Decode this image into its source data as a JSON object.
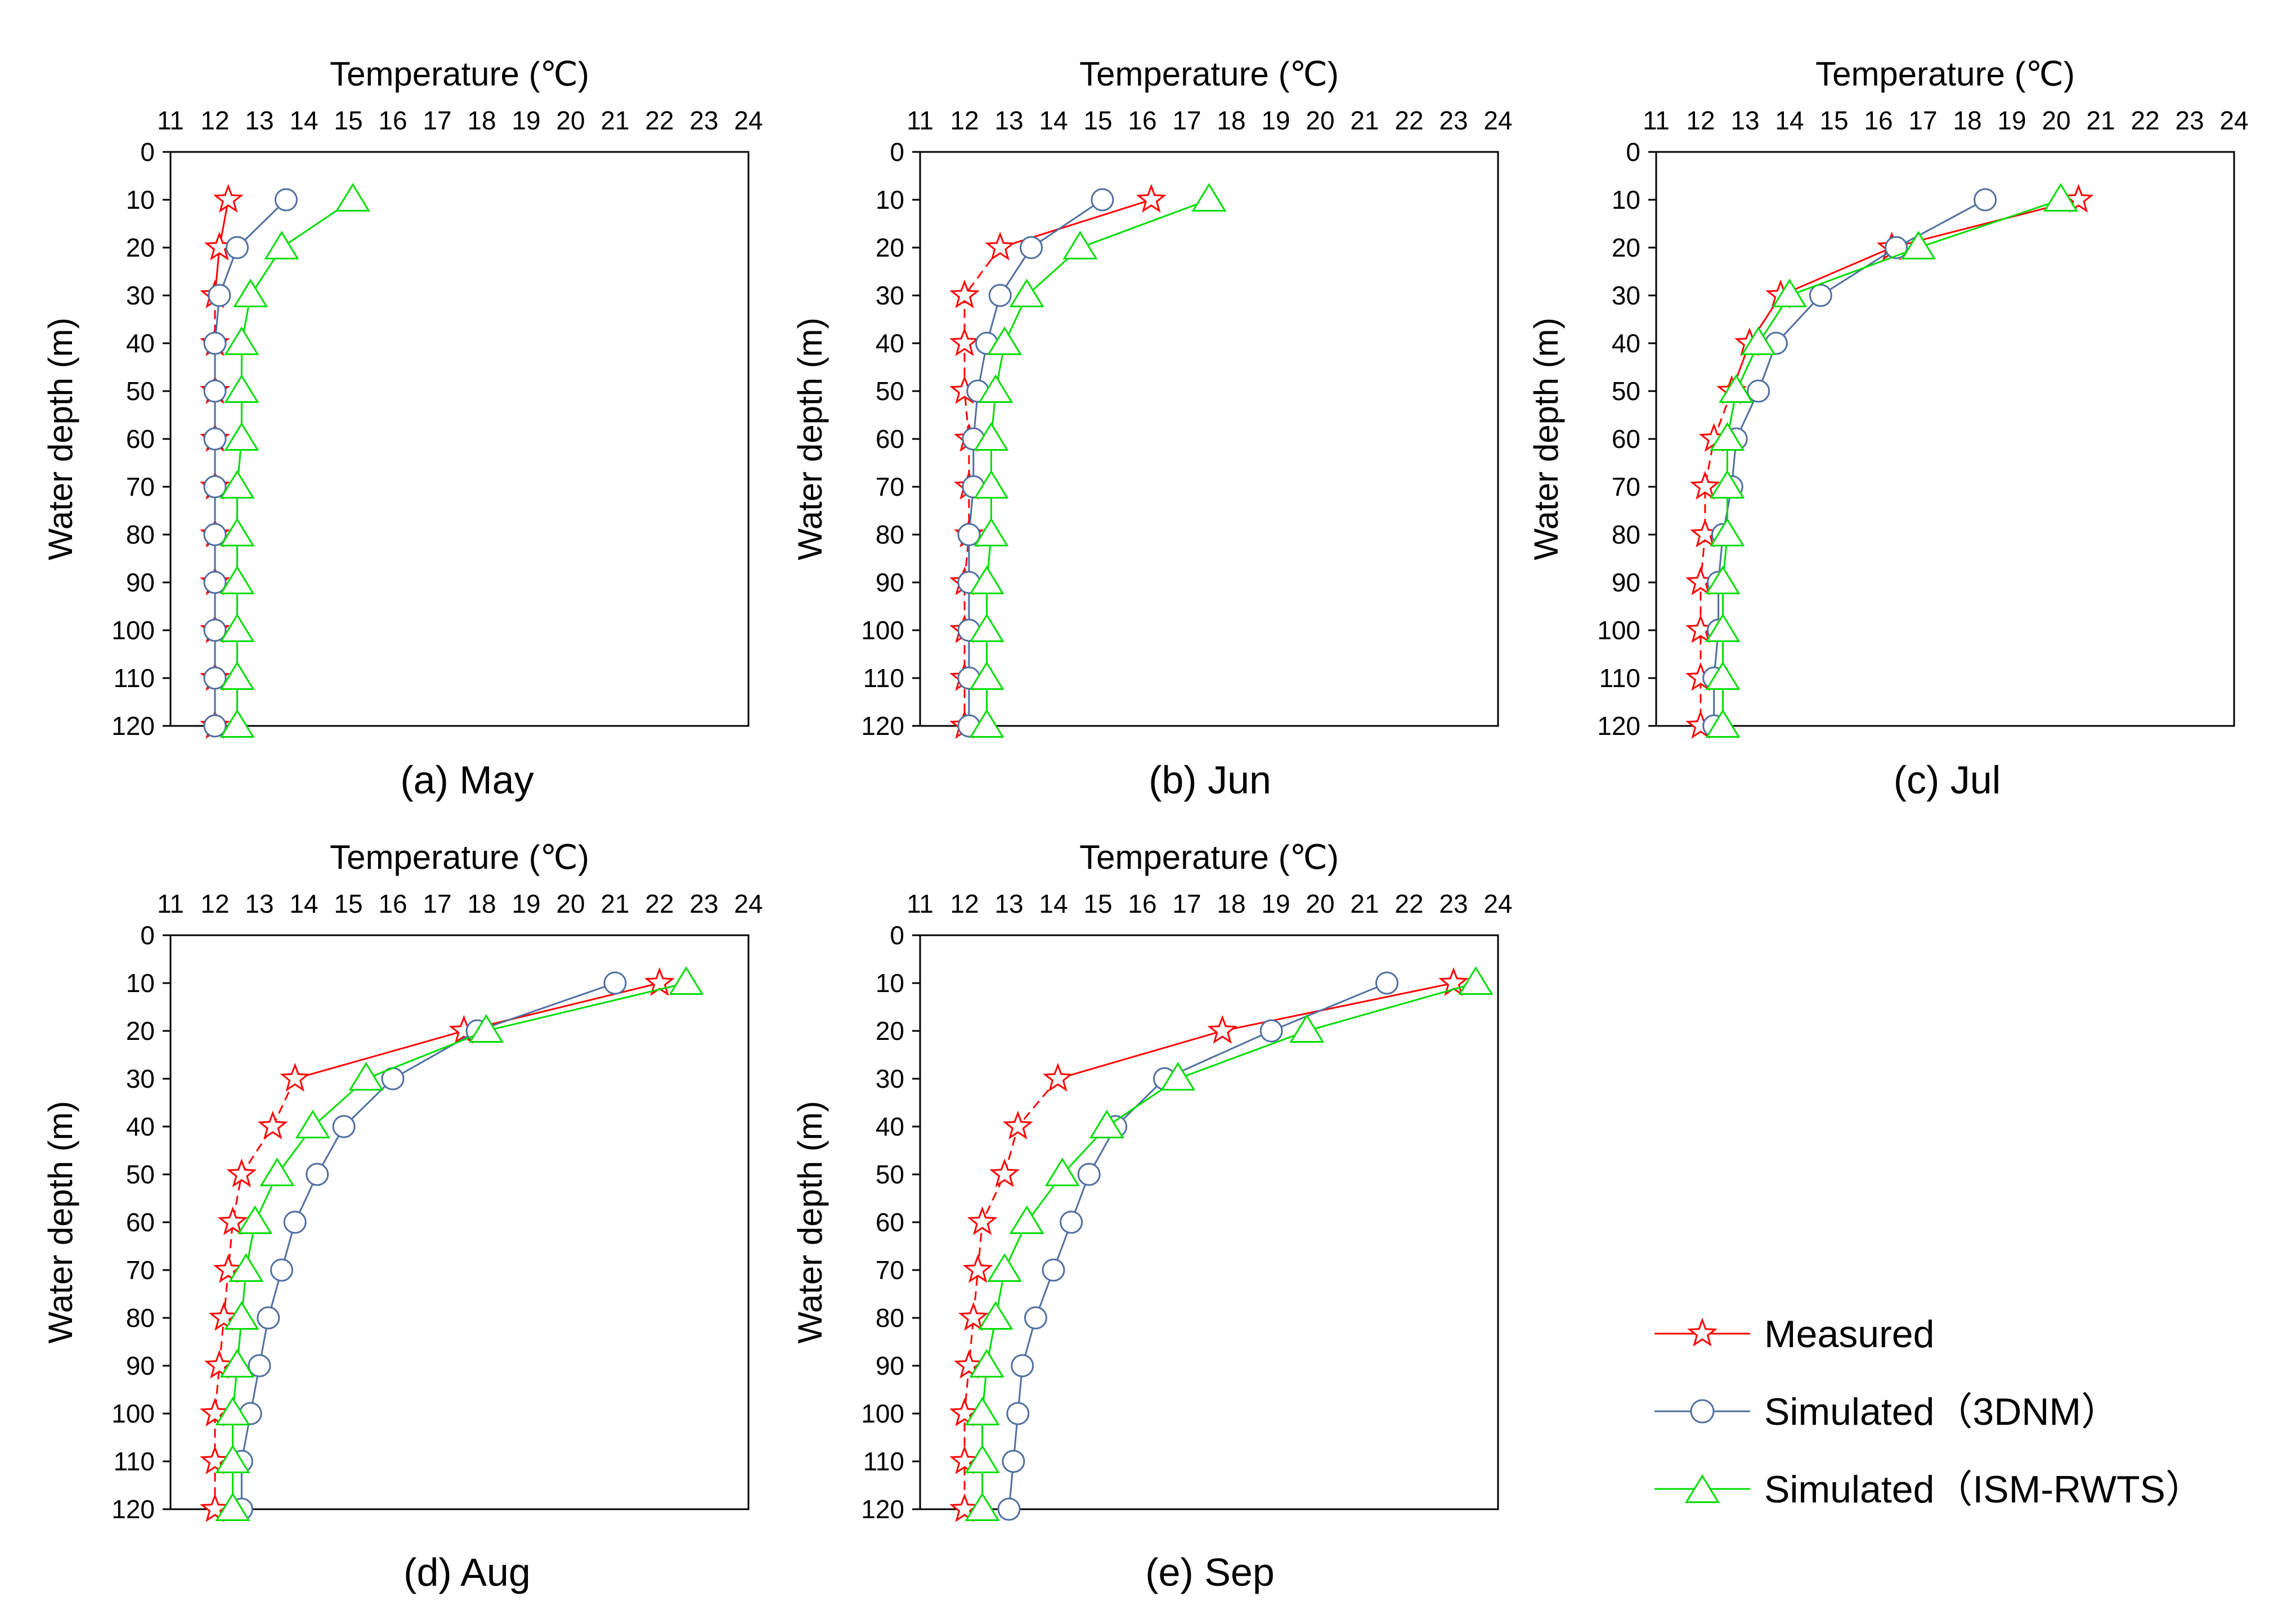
{
  "colors": {
    "measured": "#ff0000",
    "sim3dnm": "#4f6fa0",
    "simism": "#00dd00",
    "axis": "#000000"
  },
  "legend": {
    "measured": "Measured",
    "sim3dnm": "Simulated（3DNM）",
    "simism": "Simulated（ISM-RWTS）"
  },
  "chart_data": [
    {
      "type": "line",
      "caption": "(a) May",
      "xlabel": "Temperature (℃)",
      "ylabel": "Water depth (m)",
      "xlim": [
        11,
        24
      ],
      "ylim": [
        0,
        120
      ],
      "x_axis_position": "top",
      "y_inverted": true,
      "x_ticks": [
        "11",
        "12",
        "13",
        "14",
        "15",
        "16",
        "17",
        "18",
        "19",
        "20",
        "21",
        "22",
        "23",
        "24"
      ],
      "y_ticks": [
        "0",
        "10",
        "20",
        "30",
        "40",
        "50",
        "60",
        "70",
        "80",
        "90",
        "100",
        "110",
        "120"
      ],
      "depths": [
        10,
        20,
        30,
        40,
        50,
        60,
        70,
        80,
        90,
        100,
        110,
        120
      ],
      "series": [
        {
          "name": "Measured",
          "key": "measured",
          "marker": "star",
          "dashed_below": 30,
          "values": [
            12.3,
            12.1,
            12.0,
            12.0,
            12.0,
            12.0,
            12.0,
            12.0,
            12.0,
            12.0,
            12.0,
            12.0
          ]
        },
        {
          "name": "Simulated（3DNM）",
          "key": "sim3dnm",
          "marker": "circle",
          "values": [
            13.6,
            12.5,
            12.1,
            12.0,
            12.0,
            12.0,
            12.0,
            12.0,
            12.0,
            12.0,
            12.0,
            12.0
          ]
        },
        {
          "name": "Simulated（ISM-RWTS）",
          "key": "simism",
          "marker": "triangle",
          "values": [
            15.1,
            13.5,
            12.8,
            12.6,
            12.6,
            12.6,
            12.5,
            12.5,
            12.5,
            12.5,
            12.5,
            12.5
          ]
        }
      ]
    },
    {
      "type": "line",
      "caption": "(b) Jun",
      "xlabel": "Temperature (℃)",
      "ylabel": "Water depth (m)",
      "xlim": [
        11,
        24
      ],
      "ylim": [
        0,
        120
      ],
      "x_axis_position": "top",
      "y_inverted": true,
      "x_ticks": [
        "11",
        "12",
        "13",
        "14",
        "15",
        "16",
        "17",
        "18",
        "19",
        "20",
        "21",
        "22",
        "23",
        "24"
      ],
      "y_ticks": [
        "0",
        "10",
        "20",
        "30",
        "40",
        "50",
        "60",
        "70",
        "80",
        "90",
        "100",
        "110",
        "120"
      ],
      "depths": [
        10,
        20,
        30,
        40,
        50,
        60,
        70,
        80,
        90,
        100,
        110,
        120
      ],
      "series": [
        {
          "name": "Measured",
          "key": "measured",
          "marker": "star",
          "dashed_below": 20,
          "values": [
            16.2,
            12.8,
            12.0,
            12.0,
            12.0,
            12.1,
            12.1,
            12.1,
            12.0,
            12.0,
            12.0,
            12.0
          ]
        },
        {
          "name": "Simulated（3DNM）",
          "key": "sim3dnm",
          "marker": "circle",
          "values": [
            15.1,
            13.5,
            12.8,
            12.5,
            12.3,
            12.2,
            12.2,
            12.1,
            12.1,
            12.1,
            12.1,
            12.1
          ]
        },
        {
          "name": "Simulated（ISM-RWTS）",
          "key": "simism",
          "marker": "triangle",
          "values": [
            17.5,
            14.6,
            13.4,
            12.9,
            12.7,
            12.6,
            12.6,
            12.6,
            12.5,
            12.5,
            12.5,
            12.5
          ]
        }
      ]
    },
    {
      "type": "line",
      "caption": "(c) Jul",
      "xlabel": "Temperature (℃)",
      "ylabel": "Water depth (m)",
      "xlim": [
        11,
        24
      ],
      "ylim": [
        0,
        120
      ],
      "x_axis_position": "top",
      "y_inverted": true,
      "x_ticks": [
        "11",
        "12",
        "13",
        "14",
        "15",
        "16",
        "17",
        "18",
        "19",
        "20",
        "21",
        "22",
        "23",
        "24"
      ],
      "y_ticks": [
        "0",
        "10",
        "20",
        "30",
        "40",
        "50",
        "60",
        "70",
        "80",
        "90",
        "100",
        "110",
        "120"
      ],
      "depths": [
        10,
        20,
        30,
        40,
        50,
        60,
        70,
        80,
        90,
        100,
        110,
        120
      ],
      "series": [
        {
          "name": "Measured",
          "key": "measured",
          "marker": "star",
          "dashed_below": 50,
          "values": [
            20.5,
            16.3,
            13.8,
            13.1,
            12.7,
            12.3,
            12.1,
            12.1,
            12.0,
            12.0,
            12.0,
            12.0
          ]
        },
        {
          "name": "Simulated（3DNM）",
          "key": "sim3dnm",
          "marker": "circle",
          "values": [
            18.4,
            16.4,
            14.7,
            13.7,
            13.3,
            12.8,
            12.7,
            12.5,
            12.4,
            12.4,
            12.3,
            12.3
          ]
        },
        {
          "name": "Simulated（ISM-RWTS）",
          "key": "simism",
          "marker": "triangle",
          "values": [
            20.1,
            16.9,
            14.0,
            13.3,
            12.8,
            12.6,
            12.6,
            12.6,
            12.5,
            12.5,
            12.5,
            12.5
          ]
        }
      ]
    },
    {
      "type": "line",
      "caption": "(d) Aug",
      "xlabel": "Temperature (℃)",
      "ylabel": "Water depth (m)",
      "xlim": [
        11,
        24
      ],
      "ylim": [
        0,
        120
      ],
      "x_axis_position": "top",
      "y_inverted": true,
      "x_ticks": [
        "11",
        "12",
        "13",
        "14",
        "15",
        "16",
        "17",
        "18",
        "19",
        "20",
        "21",
        "22",
        "23",
        "24"
      ],
      "y_ticks": [
        "0",
        "10",
        "20",
        "30",
        "40",
        "50",
        "60",
        "70",
        "80",
        "90",
        "100",
        "110",
        "120"
      ],
      "depths": [
        10,
        20,
        30,
        40,
        50,
        60,
        70,
        80,
        90,
        100,
        110,
        120
      ],
      "series": [
        {
          "name": "Measured",
          "key": "measured",
          "marker": "star",
          "dashed_below": 30,
          "values": [
            22.0,
            17.6,
            13.8,
            13.3,
            12.6,
            12.4,
            12.3,
            12.2,
            12.1,
            12.0,
            12.0,
            12.0
          ]
        },
        {
          "name": "Simulated（3DNM）",
          "key": "sim3dnm",
          "marker": "circle",
          "values": [
            21.0,
            17.9,
            16.0,
            14.9,
            14.3,
            13.8,
            13.5,
            13.2,
            13.0,
            12.8,
            12.6,
            12.6
          ]
        },
        {
          "name": "Simulated（ISM-RWTS）",
          "key": "simism",
          "marker": "triangle",
          "values": [
            22.6,
            18.1,
            15.4,
            14.2,
            13.4,
            12.9,
            12.7,
            12.6,
            12.5,
            12.4,
            12.4,
            12.4
          ]
        }
      ]
    },
    {
      "type": "line",
      "caption": "(e) Sep",
      "xlabel": "Temperature (℃)",
      "ylabel": "Water depth (m)",
      "xlim": [
        11,
        24
      ],
      "ylim": [
        0,
        120
      ],
      "x_axis_position": "top",
      "y_inverted": true,
      "x_ticks": [
        "11",
        "12",
        "13",
        "14",
        "15",
        "16",
        "17",
        "18",
        "19",
        "20",
        "21",
        "22",
        "23",
        "24"
      ],
      "y_ticks": [
        "0",
        "10",
        "20",
        "30",
        "40",
        "50",
        "60",
        "70",
        "80",
        "90",
        "100",
        "110",
        "120"
      ],
      "depths": [
        10,
        20,
        30,
        40,
        50,
        60,
        70,
        80,
        90,
        100,
        110,
        120
      ],
      "series": [
        {
          "name": "Measured",
          "key": "measured",
          "marker": "star",
          "dashed_below": 30,
          "values": [
            23.0,
            17.8,
            14.1,
            13.2,
            12.9,
            12.4,
            12.3,
            12.2,
            12.1,
            12.0,
            12.0,
            12.0
          ]
        },
        {
          "name": "Simulated（3DNM）",
          "key": "sim3dnm",
          "marker": "circle",
          "values": [
            21.5,
            18.9,
            16.5,
            15.4,
            14.8,
            14.4,
            14.0,
            13.6,
            13.3,
            13.2,
            13.1,
            13.0
          ]
        },
        {
          "name": "Simulated（ISM-RWTS）",
          "key": "simism",
          "marker": "triangle",
          "values": [
            23.5,
            19.7,
            16.8,
            15.2,
            14.2,
            13.4,
            12.9,
            12.7,
            12.5,
            12.4,
            12.4,
            12.4
          ]
        }
      ]
    }
  ]
}
